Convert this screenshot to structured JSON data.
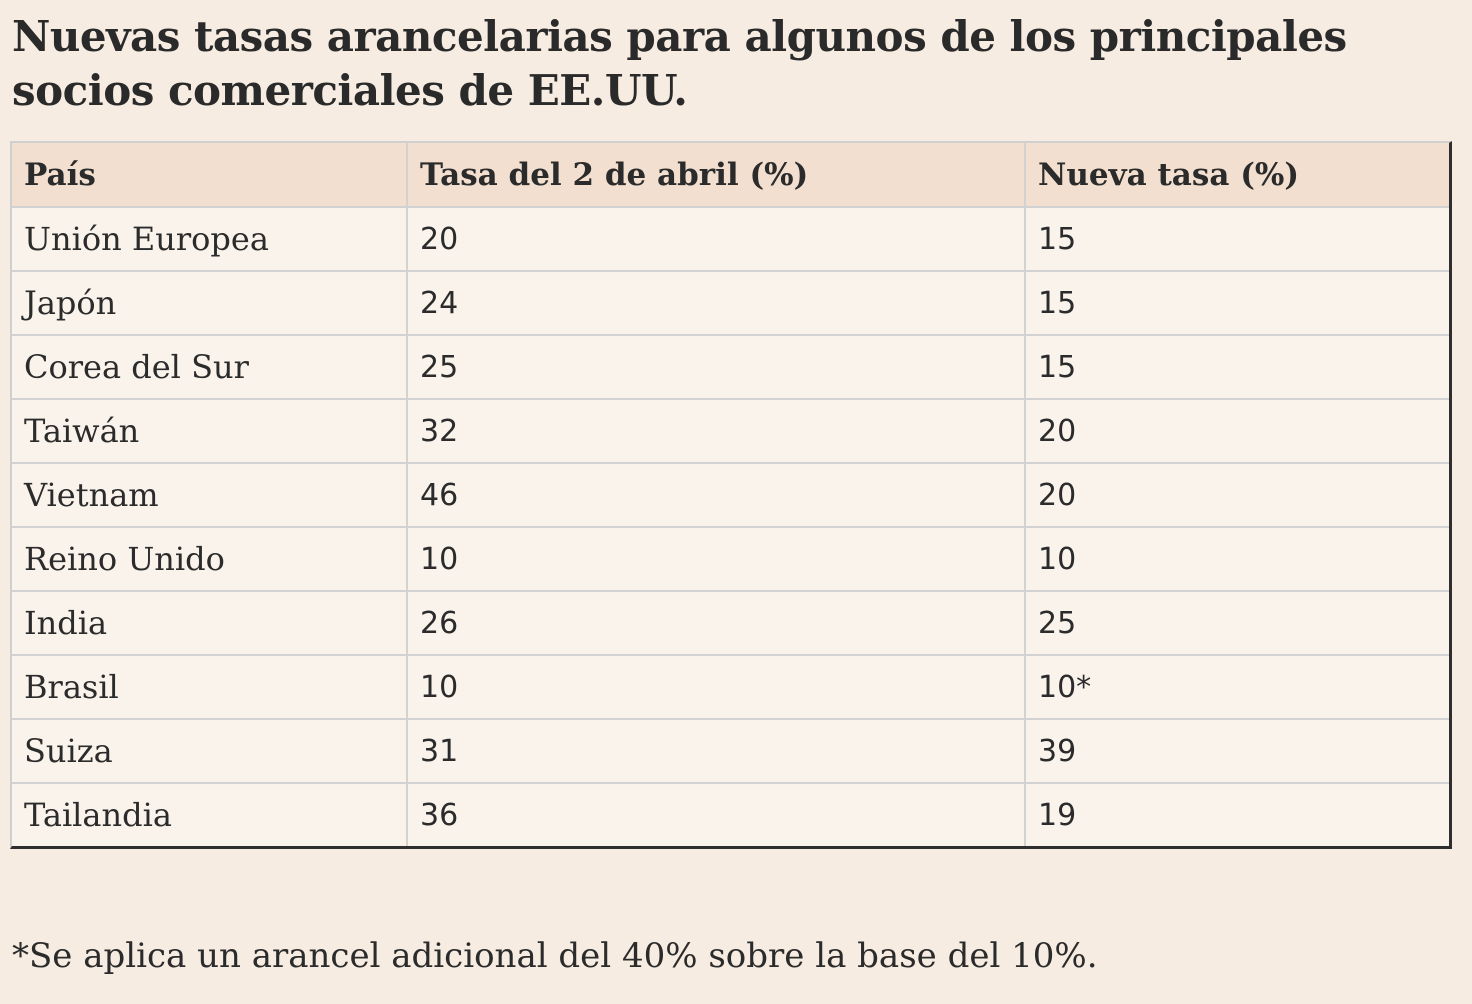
{
  "title": "Nuevas tasas arancelarias para algunos de los principales socios comerciales de EE.UU.",
  "table": {
    "headers": [
      "País",
      "Tasa del 2 de abril (%)",
      "Nueva tasa (%)"
    ],
    "rows": [
      [
        "Unión Europea",
        "20",
        "15"
      ],
      [
        "Japón",
        "24",
        "15"
      ],
      [
        "Corea del Sur",
        "25",
        "15"
      ],
      [
        "Taiwán",
        "32",
        "20"
      ],
      [
        "Vietnam",
        "46",
        "20"
      ],
      [
        "Reino Unido",
        "10",
        "10"
      ],
      [
        "India",
        "26",
        "25"
      ],
      [
        "Brasil",
        "10",
        "10*"
      ],
      [
        "Suiza",
        "31",
        "39"
      ],
      [
        "Tailandia",
        "36",
        "19"
      ]
    ]
  },
  "footnote": "*Se aplica un arancel adicional del 40% sobre la base del 10%."
}
